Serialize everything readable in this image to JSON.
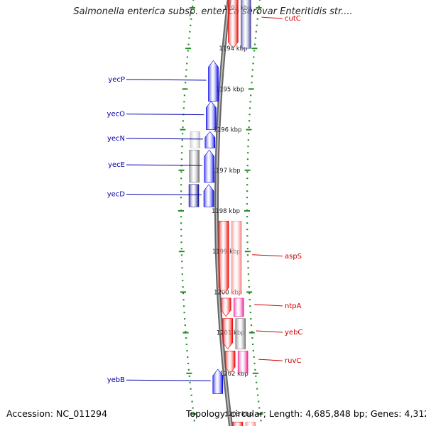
{
  "title": "Salmonella enterica subsp. enterica serovar Enteritidis str....",
  "footer": {
    "accession": "Accession: NC_011294",
    "topology": "Topology: circular; Length: 4,685,848 bp; Genes: 4,312"
  },
  "colors": {
    "forward_gene": "#0000ee",
    "forward_dark": "#000088",
    "reverse_gene": "#ee0000",
    "reverse_light": "#f08080",
    "magenta": "#ee1493",
    "gray": "#777777",
    "tick": "#228b22",
    "backbone": "#888888",
    "label_blue": "#0000aa",
    "label_red": "#cc0000"
  },
  "ruler": {
    "ticks": [
      {
        "label": "1193 kbp",
        "kb": 1193
      },
      {
        "label": "1194 kbp",
        "kb": 1194
      },
      {
        "label": "1195 kbp",
        "kb": 1195
      },
      {
        "label": "1196 kbp",
        "kb": 1196
      },
      {
        "label": "1197 kbp",
        "kb": 1197
      },
      {
        "label": "1198 kbp",
        "kb": 1198
      },
      {
        "label": "1199 kbp",
        "kb": 1199
      },
      {
        "label": "1200 kbp",
        "kb": 1200
      },
      {
        "label": "1201 kbp",
        "kb": 1201
      },
      {
        "label": "1202 kbp",
        "kb": 1202
      },
      {
        "label": "1203 kbp",
        "kb": 1203
      }
    ]
  },
  "genes": [
    {
      "name": "cutC",
      "start_kb": 1192.6,
      "end_kb": 1194.0,
      "strand": "reverse",
      "color": "#ee0000",
      "lane": "gene"
    },
    {
      "name": "yecP",
      "start_kb": 1194.3,
      "end_kb": 1195.3,
      "strand": "forward",
      "color": "#0000ee",
      "lane": "gene"
    },
    {
      "name": "yecO",
      "start_kb": 1195.3,
      "end_kb": 1196.0,
      "strand": "forward",
      "color": "#0000ee",
      "lane": "gene"
    },
    {
      "name": "yecN",
      "start_kb": 1196.05,
      "end_kb": 1196.45,
      "strand": "forward",
      "color": "#0000ee",
      "lane": "gene"
    },
    {
      "name": "yecE",
      "start_kb": 1196.5,
      "end_kb": 1197.3,
      "strand": "forward",
      "color": "#0000ee",
      "lane": "gene"
    },
    {
      "name": "yecD",
      "start_kb": 1197.35,
      "end_kb": 1197.9,
      "strand": "forward",
      "color": "#0000ee",
      "lane": "gene"
    },
    {
      "name": "aspS",
      "start_kb": 1198.25,
      "end_kb": 1200.05,
      "strand": "reverse",
      "color": "#ee0000",
      "lane": "gene"
    },
    {
      "name": "ntpA",
      "start_kb": 1200.15,
      "end_kb": 1200.6,
      "strand": "reverse",
      "color": "#ee0000",
      "lane": "gene"
    },
    {
      "name": "yebC",
      "start_kb": 1200.65,
      "end_kb": 1201.4,
      "strand": "reverse",
      "color": "#ee0000",
      "lane": "gene"
    },
    {
      "name": "ruvC",
      "start_kb": 1201.45,
      "end_kb": 1202.0,
      "strand": "reverse",
      "color": "#ee0000",
      "lane": "gene"
    },
    {
      "name": "yebB",
      "start_kb": 1201.9,
      "end_kb": 1202.5,
      "strand": "forward",
      "color": "#0000ee",
      "lane": "gene"
    },
    {
      "name": "",
      "start_kb": 1203.2,
      "end_kb": 1203.6,
      "strand": "reverse",
      "color": "#ee0000",
      "lane": "gene"
    }
  ],
  "cds_boxes": [
    {
      "start_kb": 1192.6,
      "end_kb": 1194.0,
      "color": "#3a3a9a",
      "side": "right"
    },
    {
      "start_kb": 1196.05,
      "end_kb": 1196.45,
      "color": "#bbbbbb",
      "side": "left"
    },
    {
      "start_kb": 1196.5,
      "end_kb": 1197.3,
      "color": "#6e6e6e",
      "side": "left"
    },
    {
      "start_kb": 1197.35,
      "end_kb": 1197.9,
      "color": "#000088",
      "side": "left"
    },
    {
      "start_kb": 1198.25,
      "end_kb": 1200.05,
      "color": "#f08080",
      "side": "right"
    },
    {
      "start_kb": 1200.15,
      "end_kb": 1200.6,
      "color": "#ee1493",
      "side": "right"
    },
    {
      "start_kb": 1200.65,
      "end_kb": 1201.4,
      "color": "#6e6e6e",
      "side": "right"
    },
    {
      "start_kb": 1201.45,
      "end_kb": 1202.0,
      "color": "#ee1493",
      "side": "right"
    },
    {
      "start_kb": 1203.2,
      "end_kb": 1203.6,
      "color": "#f08080",
      "side": "right"
    }
  ]
}
